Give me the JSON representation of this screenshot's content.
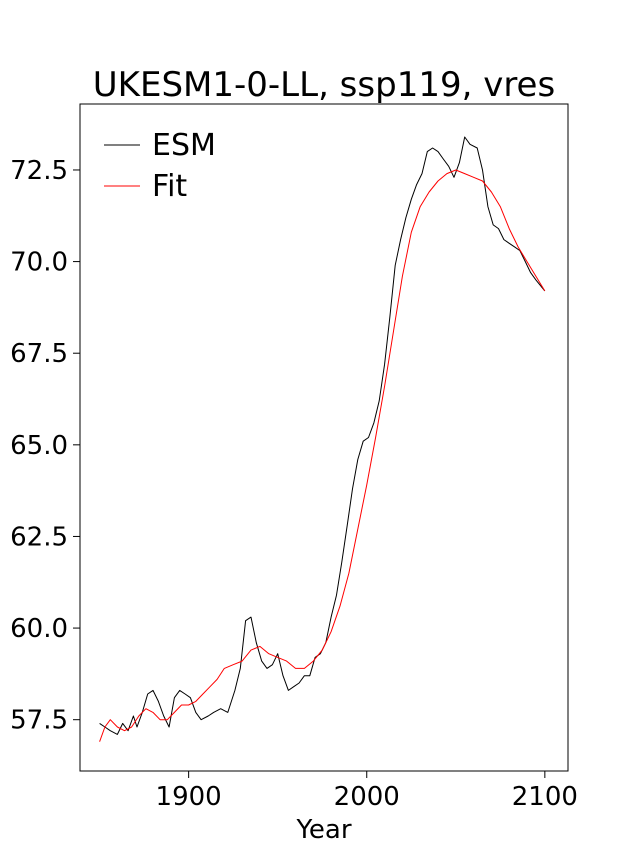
{
  "chart_data": {
    "type": "line",
    "title": "UKESM1-0-LL, ssp119, vres",
    "xlabel": "Year",
    "ylabel": "",
    "xlim": [
      1839,
      2113
    ],
    "ylim": [
      56.1,
      74.3
    ],
    "xticks": [
      1900,
      2000,
      2100
    ],
    "yticks": [
      57.5,
      60.0,
      62.5,
      65.0,
      67.5,
      70.0,
      72.5
    ],
    "xtick_labels": [
      "1900",
      "2000",
      "2100"
    ],
    "ytick_labels": [
      "57.5",
      "60.0",
      "62.5",
      "65.0",
      "67.5",
      "70.0",
      "72.5"
    ],
    "legend_position": "upper-left",
    "grid": false,
    "series": [
      {
        "name": "ESM",
        "color": "#000000",
        "x": [
          1850,
          1853,
          1856,
          1860,
          1863,
          1866,
          1869,
          1871,
          1874,
          1877,
          1880,
          1883,
          1886,
          1889,
          1892,
          1895,
          1898,
          1901,
          1904,
          1907,
          1911,
          1914,
          1918,
          1922,
          1926,
          1929,
          1932,
          1935,
          1938,
          1941,
          1944,
          1947,
          1950,
          1953,
          1956,
          1959,
          1962,
          1965,
          1968,
          1971,
          1974,
          1977,
          1980,
          1983,
          1986,
          1989,
          1992,
          1995,
          1998,
          2001,
          2004,
          2007,
          2010,
          2013,
          2016,
          2019,
          2022,
          2025,
          2028,
          2031,
          2034,
          2037,
          2040,
          2043,
          2046,
          2049,
          2052,
          2055,
          2058,
          2062,
          2065,
          2068,
          2071,
          2074,
          2077,
          2080,
          2083,
          2086,
          2089,
          2092,
          2095,
          2100
        ],
        "y": [
          57.4,
          57.3,
          57.2,
          57.1,
          57.4,
          57.2,
          57.6,
          57.3,
          57.7,
          58.2,
          58.3,
          58.0,
          57.6,
          57.3,
          58.1,
          58.3,
          58.2,
          58.1,
          57.7,
          57.5,
          57.6,
          57.7,
          57.8,
          57.7,
          58.3,
          58.9,
          60.2,
          60.3,
          59.6,
          59.1,
          58.9,
          59.0,
          59.3,
          58.7,
          58.3,
          58.4,
          58.5,
          58.7,
          58.7,
          59.2,
          59.3,
          59.6,
          60.3,
          60.9,
          61.8,
          62.8,
          63.8,
          64.6,
          65.1,
          65.2,
          65.6,
          66.2,
          67.2,
          68.5,
          69.9,
          70.6,
          71.2,
          71.7,
          72.1,
          72.4,
          73.0,
          73.1,
          73.0,
          72.8,
          72.6,
          72.3,
          72.7,
          73.4,
          73.2,
          73.1,
          72.5,
          71.5,
          71.0,
          70.9,
          70.6,
          70.5,
          70.4,
          70.3,
          70.0,
          69.7,
          69.5,
          69.2
        ]
      },
      {
        "name": "Fit",
        "color": "#ff0000",
        "x": [
          1850,
          1853,
          1856,
          1860,
          1864,
          1868,
          1872,
          1876,
          1880,
          1884,
          1888,
          1892,
          1896,
          1900,
          1904,
          1908,
          1912,
          1916,
          1920,
          1925,
          1930,
          1935,
          1940,
          1945,
          1950,
          1955,
          1960,
          1965,
          1970,
          1975,
          1980,
          1985,
          1990,
          1995,
          2000,
          2005,
          2010,
          2015,
          2020,
          2025,
          2030,
          2035,
          2040,
          2045,
          2050,
          2055,
          2060,
          2065,
          2070,
          2075,
          2080,
          2085,
          2090,
          2095,
          2100
        ],
        "y": [
          56.9,
          57.3,
          57.5,
          57.3,
          57.2,
          57.3,
          57.6,
          57.8,
          57.7,
          57.5,
          57.5,
          57.7,
          57.9,
          57.9,
          58.0,
          58.2,
          58.4,
          58.6,
          58.9,
          59.0,
          59.1,
          59.4,
          59.5,
          59.3,
          59.2,
          59.1,
          58.9,
          58.9,
          59.1,
          59.4,
          59.9,
          60.6,
          61.5,
          62.7,
          63.9,
          65.2,
          66.6,
          68.1,
          69.6,
          70.8,
          71.5,
          71.9,
          72.2,
          72.4,
          72.5,
          72.4,
          72.3,
          72.2,
          71.9,
          71.5,
          70.9,
          70.4,
          70.0,
          69.6,
          69.2
        ]
      }
    ]
  }
}
